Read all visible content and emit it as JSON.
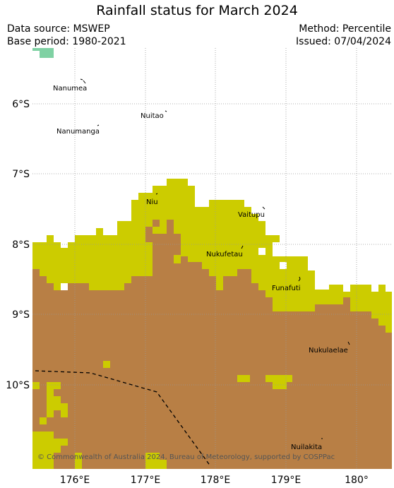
{
  "title": "Rainfall status for March 2024",
  "data_source": "Data source: MSWEP",
  "base_period": "Base period: 1980-2021",
  "method": "Method: Percentile",
  "issued": "Issued: 07/04/2024",
  "credit": "© Commonwealth of Australia 2024, Bureau of Meteorology, supported by COSPPac",
  "lat_ticks": [
    "6°S",
    "7°S",
    "8°S",
    "9°S",
    "10°S"
  ],
  "lon_ticks": [
    "176°E",
    "177°E",
    "178°E",
    "179°E",
    "180°"
  ],
  "islands": [
    "Nanumea",
    "Nuitao",
    "Nanumanga",
    "Niu",
    "Vaitupu",
    "Nukufetau",
    "Funafuti",
    "Nukulaelae",
    "Nuilakita"
  ],
  "colors": {
    "dry": "#b87f45",
    "below_average": "#cccc00",
    "above_average": "#7fd1a3",
    "grid": "#999999",
    "boundary": "#000000"
  }
}
